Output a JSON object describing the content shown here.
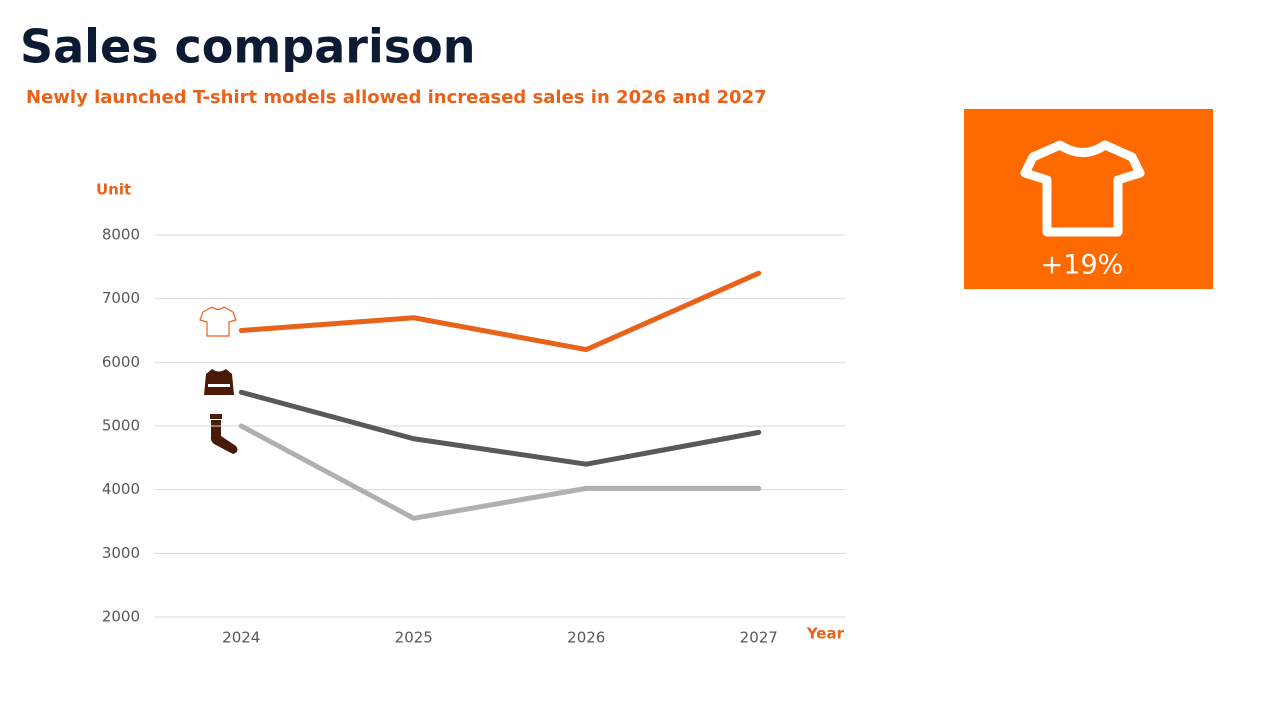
{
  "chart_data": {
    "type": "line",
    "title": "Sales comparison",
    "subtitle": "Newly launched T-shirt models allowed increased sales in 2026 and 2027",
    "y_label": "Unit",
    "x_label": "Year",
    "categories": [
      "2024",
      "2025",
      "2026",
      "2027"
    ],
    "series": [
      {
        "color": "#e8621a",
        "values": [
          6500,
          6700,
          6200,
          7400
        ]
      },
      {
        "color": "#595959",
        "values": [
          5530,
          4800,
          4400,
          4900
        ]
      },
      {
        "color": "#b0b0b0",
        "values": [
          5000,
          3550,
          4020,
          4020
        ]
      }
    ],
    "ylim": [
      2000,
      8000
    ],
    "yticks": [
      2000,
      3000,
      4000,
      5000,
      6000,
      7000,
      8000
    ],
    "grid": true,
    "callout": "+19%",
    "callout_color": "#ff6a00"
  }
}
